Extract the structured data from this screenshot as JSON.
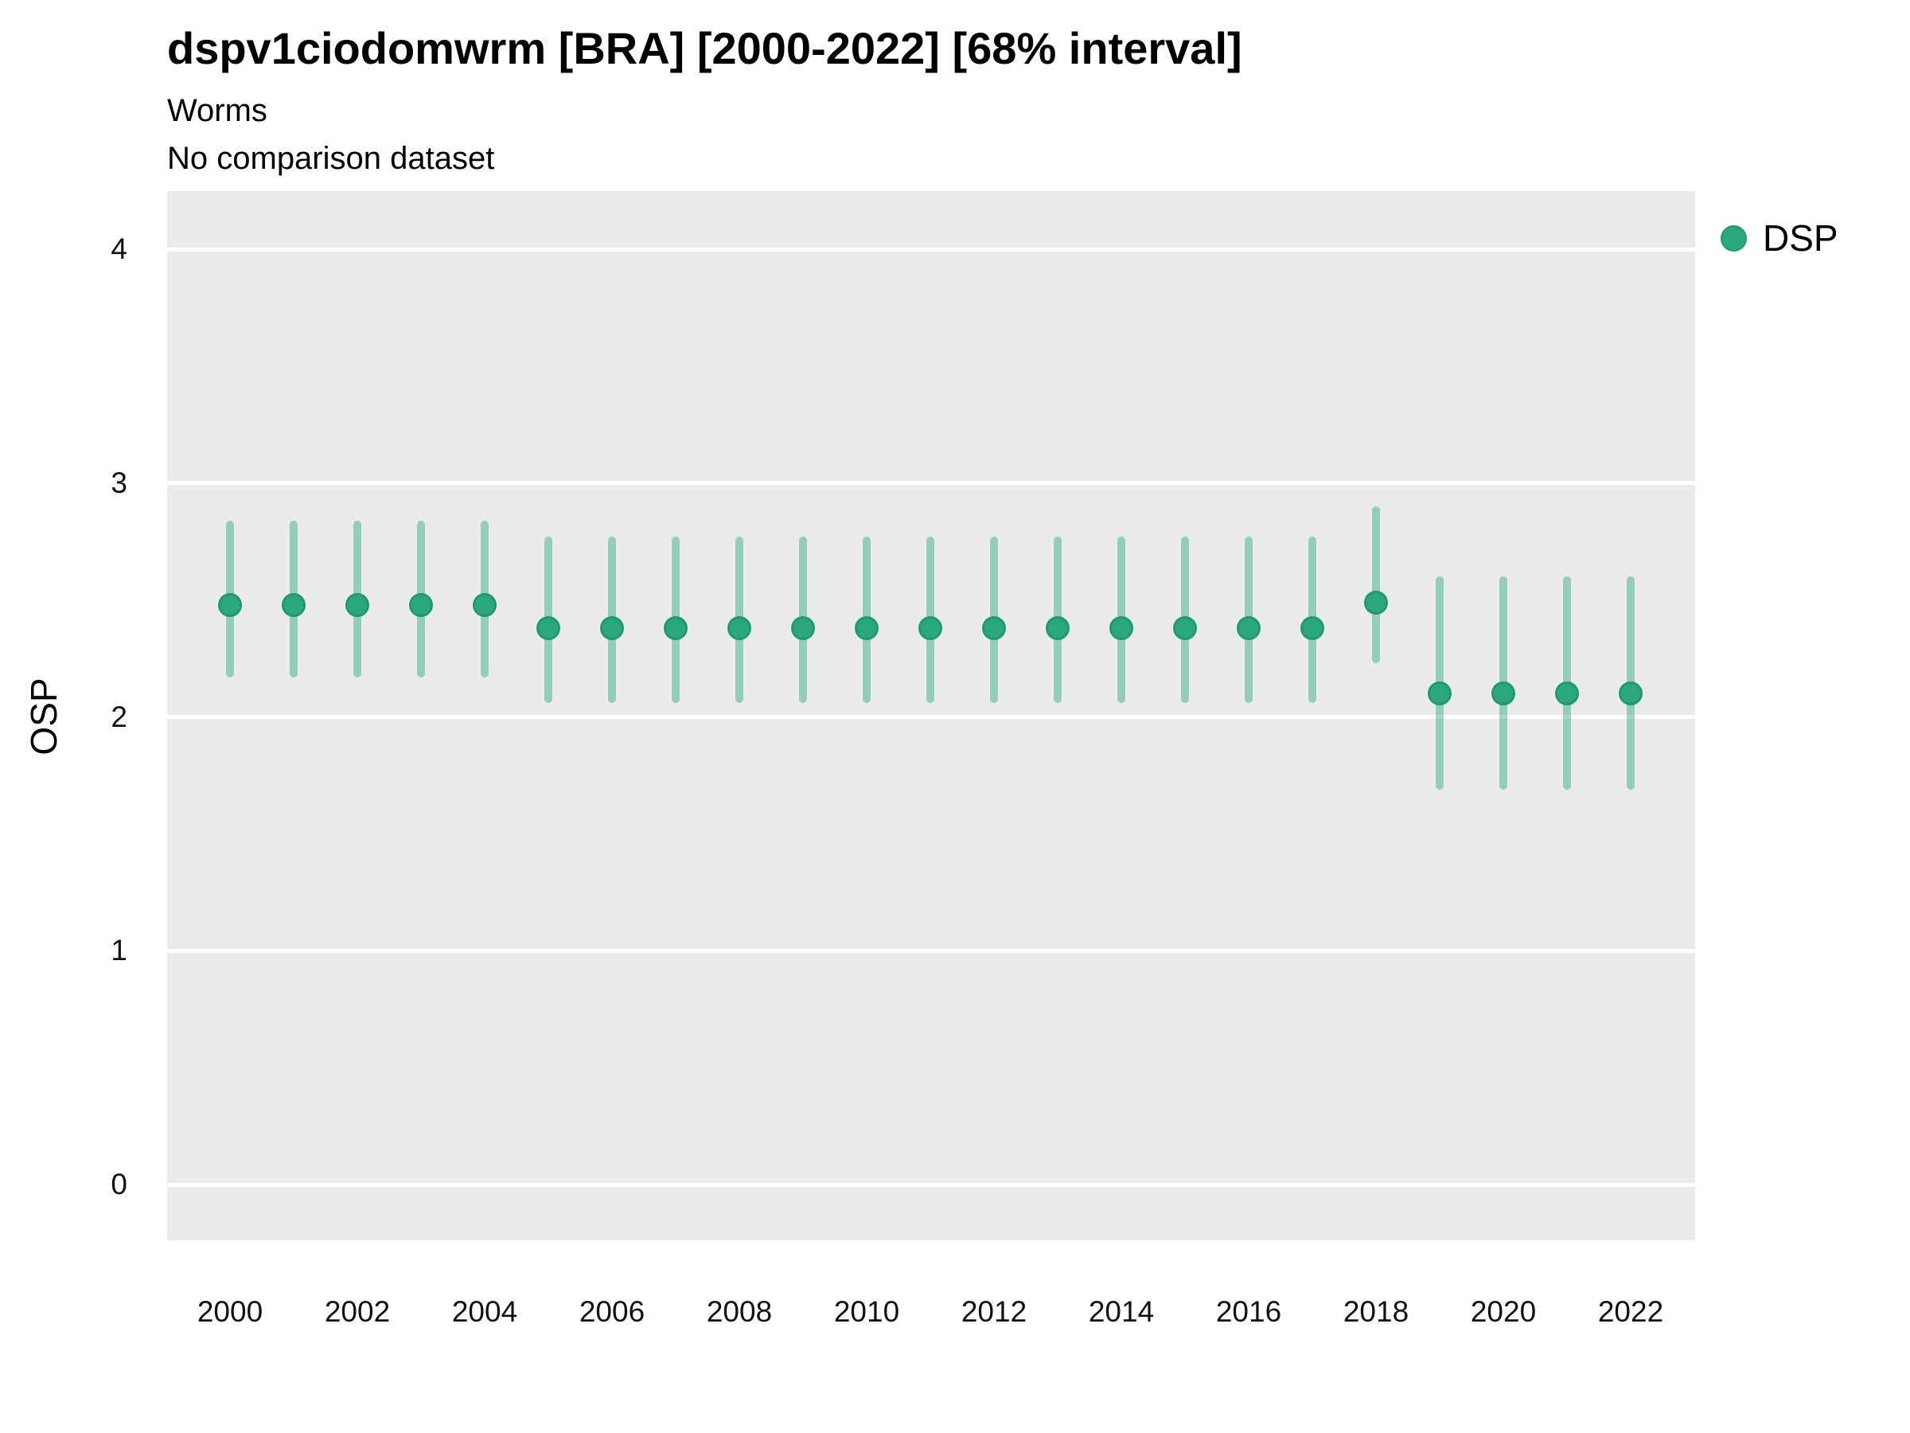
{
  "chart_data": {
    "type": "pointrange",
    "title": "dspv1ciodomwrm [BRA] [2000-2022] [68% interval]",
    "subtitle": "Worms",
    "note": "No comparison dataset",
    "xlabel": "",
    "ylabel": "OSP",
    "interval_level": "68%",
    "grid": "major horizontal white gridlines on grey panel",
    "legend_position": "right",
    "x_tick_labels": [
      2000,
      2002,
      2004,
      2006,
      2008,
      2010,
      2012,
      2014,
      2016,
      2018,
      2020,
      2022
    ],
    "y_tick_labels": [
      0,
      1,
      2,
      3,
      4
    ],
    "xlim": [
      1999,
      2023
    ],
    "ylim": [
      -0.24,
      4.25
    ],
    "series": [
      {
        "name": "DSP",
        "points": [
          {
            "x": 2000,
            "y": 2.48,
            "lo": 2.17,
            "hi": 2.84
          },
          {
            "x": 2001,
            "y": 2.48,
            "lo": 2.17,
            "hi": 2.84
          },
          {
            "x": 2002,
            "y": 2.48,
            "lo": 2.17,
            "hi": 2.84
          },
          {
            "x": 2003,
            "y": 2.48,
            "lo": 2.17,
            "hi": 2.84
          },
          {
            "x": 2004,
            "y": 2.48,
            "lo": 2.17,
            "hi": 2.84
          },
          {
            "x": 2005,
            "y": 2.38,
            "lo": 2.06,
            "hi": 2.77
          },
          {
            "x": 2006,
            "y": 2.38,
            "lo": 2.06,
            "hi": 2.77
          },
          {
            "x": 2007,
            "y": 2.38,
            "lo": 2.06,
            "hi": 2.77
          },
          {
            "x": 2008,
            "y": 2.38,
            "lo": 2.06,
            "hi": 2.77
          },
          {
            "x": 2009,
            "y": 2.38,
            "lo": 2.06,
            "hi": 2.77
          },
          {
            "x": 2010,
            "y": 2.38,
            "lo": 2.06,
            "hi": 2.77
          },
          {
            "x": 2011,
            "y": 2.38,
            "lo": 2.06,
            "hi": 2.77
          },
          {
            "x": 2012,
            "y": 2.38,
            "lo": 2.06,
            "hi": 2.77
          },
          {
            "x": 2013,
            "y": 2.38,
            "lo": 2.06,
            "hi": 2.77
          },
          {
            "x": 2014,
            "y": 2.38,
            "lo": 2.06,
            "hi": 2.77
          },
          {
            "x": 2015,
            "y": 2.38,
            "lo": 2.06,
            "hi": 2.77
          },
          {
            "x": 2016,
            "y": 2.38,
            "lo": 2.06,
            "hi": 2.77
          },
          {
            "x": 2017,
            "y": 2.38,
            "lo": 2.06,
            "hi": 2.77
          },
          {
            "x": 2018,
            "y": 2.49,
            "lo": 2.23,
            "hi": 2.9
          },
          {
            "x": 2019,
            "y": 2.1,
            "lo": 1.69,
            "hi": 2.6
          },
          {
            "x": 2020,
            "y": 2.1,
            "lo": 1.69,
            "hi": 2.6
          },
          {
            "x": 2021,
            "y": 2.1,
            "lo": 1.69,
            "hi": 2.6
          },
          {
            "x": 2022,
            "y": 2.1,
            "lo": 1.69,
            "hi": 2.6
          }
        ]
      }
    ]
  },
  "colors": {
    "point_fill": "#2aa87c",
    "point_stroke": "#1f9a6e",
    "interval_line": "rgba(42,168,124,0.45)",
    "panel_background": "#ebebeb",
    "gridline": "#ffffff",
    "text": "#000000"
  }
}
